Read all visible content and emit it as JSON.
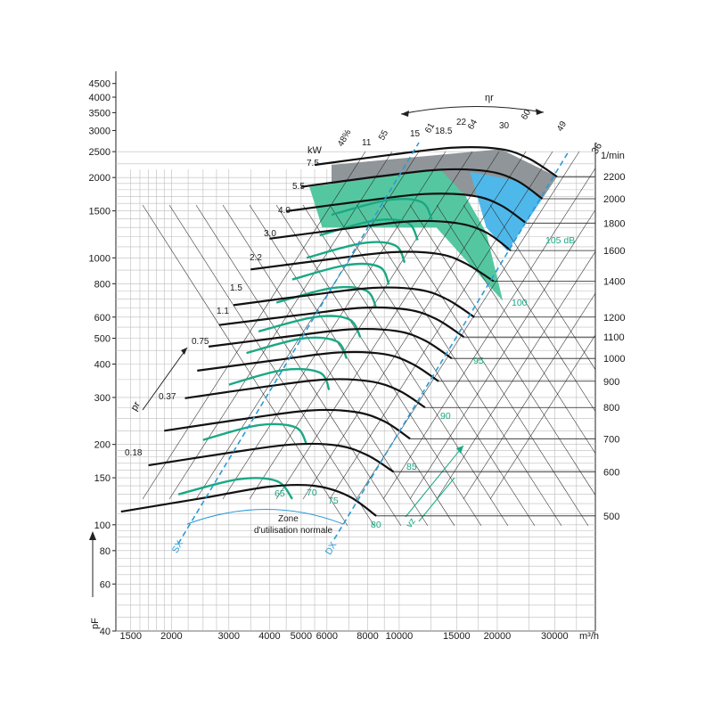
{
  "chart_data": {
    "type": "line",
    "title": "",
    "xlabel": "m³/h",
    "ylabel": "pF",
    "x_scale": "log",
    "y_scale": "log",
    "x_ticks": [
      1500,
      2000,
      3000,
      4000,
      5000,
      6000,
      8000,
      10000,
      15000,
      20000,
      30000
    ],
    "x_unit": "m³/h",
    "y_ticks": [
      40,
      60,
      80,
      100,
      150,
      200,
      300,
      400,
      500,
      600,
      800,
      1000,
      1500,
      2000,
      2500,
      3000,
      3500,
      4000,
      4500
    ],
    "y_axis_symbol": "pF",
    "speed_unit": "1/min",
    "speed_ticks": [
      500,
      600,
      700,
      800,
      900,
      1000,
      1100,
      1200,
      1400,
      1600,
      1800,
      2000,
      2200
    ],
    "power_unit": "kW",
    "power_labels": [
      "0.18",
      "0.37",
      "0.75",
      "1.1",
      "1.5",
      "2.2",
      "3.0",
      "4.0",
      "5.5",
      "7.5",
      "11",
      "15",
      "18.5",
      "22",
      "30"
    ],
    "efficiency_labels": [
      "48%",
      "55",
      "61",
      "64",
      "60",
      "49"
    ],
    "efficiency_symbol": "ηr",
    "pressure_axis_symbol": "pr",
    "sound_labels": [
      "65",
      "70",
      "75",
      "80",
      "85",
      "90",
      "95",
      "100",
      "105 dB"
    ],
    "zone_label_1": "Zone",
    "zone_label_2": "d'utilisation normale",
    "sx_label": "SX",
    "dx_label": "DX",
    "velocity_label": "vz",
    "top_label": "36",
    "speed_curves": [
      {
        "rpm": 500,
        "points": [
          [
            1400,
            112
          ],
          [
            2500,
            126
          ],
          [
            4000,
            139
          ],
          [
            5500,
            140
          ],
          [
            7000,
            128
          ],
          [
            8500,
            108
          ]
        ]
      },
      {
        "rpm": 600,
        "points": [
          [
            1700,
            167
          ],
          [
            3000,
            186
          ],
          [
            4700,
            200
          ],
          [
            6500,
            198
          ],
          [
            8000,
            182
          ],
          [
            9600,
            158
          ]
        ]
      },
      {
        "rpm": 700,
        "points": [
          [
            1900,
            225
          ],
          [
            3400,
            250
          ],
          [
            5300,
            268
          ],
          [
            7300,
            265
          ],
          [
            9000,
            244
          ],
          [
            10800,
            210
          ]
        ]
      },
      {
        "rpm": 800,
        "points": [
          [
            2200,
            298
          ],
          [
            3800,
            328
          ],
          [
            5900,
            350
          ],
          [
            8100,
            345
          ],
          [
            10000,
            318
          ],
          [
            12000,
            275
          ]
        ]
      },
      {
        "rpm": 900,
        "points": [
          [
            2400,
            378
          ],
          [
            4200,
            414
          ],
          [
            6500,
            442
          ],
          [
            9000,
            436
          ],
          [
            11000,
            400
          ],
          [
            13200,
            345
          ]
        ]
      },
      {
        "rpm": 1000,
        "points": [
          [
            2600,
            465
          ],
          [
            4600,
            508
          ],
          [
            7100,
            540
          ],
          [
            9800,
            532
          ],
          [
            12000,
            490
          ],
          [
            14500,
            420
          ]
        ]
      },
      {
        "rpm": 1100,
        "points": [
          [
            2800,
            560
          ],
          [
            5000,
            612
          ],
          [
            7700,
            650
          ],
          [
            10600,
            640
          ],
          [
            13000,
            590
          ],
          [
            15800,
            505
          ]
        ]
      },
      {
        "rpm": 1200,
        "points": [
          [
            3100,
            665
          ],
          [
            5400,
            727
          ],
          [
            8300,
            772
          ],
          [
            11500,
            760
          ],
          [
            14000,
            700
          ],
          [
            17000,
            600
          ]
        ]
      },
      {
        "rpm": 1400,
        "points": [
          [
            3500,
            905
          ],
          [
            6200,
            990
          ],
          [
            9500,
            1050
          ],
          [
            13200,
            1035
          ],
          [
            16000,
            952
          ],
          [
            19500,
            817
          ]
        ]
      },
      {
        "rpm": 1600,
        "points": [
          [
            4000,
            1180
          ],
          [
            7000,
            1290
          ],
          [
            10800,
            1370
          ],
          [
            15000,
            1350
          ],
          [
            18500,
            1245
          ],
          [
            22000,
            1065
          ]
        ]
      },
      {
        "rpm": 1800,
        "points": [
          [
            4500,
            1495
          ],
          [
            7800,
            1635
          ],
          [
            12000,
            1735
          ],
          [
            16800,
            1710
          ],
          [
            20500,
            1575
          ],
          [
            24500,
            1350
          ]
        ]
      },
      {
        "rpm": 2000,
        "points": [
          [
            5000,
            1845
          ],
          [
            8700,
            2020
          ],
          [
            13400,
            2140
          ],
          [
            18700,
            2110
          ],
          [
            23000,
            1945
          ],
          [
            27500,
            1665
          ]
        ]
      },
      {
        "rpm": 2200,
        "points": [
          [
            5500,
            2230
          ],
          [
            9600,
            2440
          ],
          [
            14800,
            2590
          ],
          [
            20500,
            2555
          ],
          [
            25000,
            2355
          ],
          [
            30500,
            2015
          ]
        ]
      }
    ],
    "power_curves": [
      {
        "kw": "0.18",
        "points": [
          [
            2100,
            130
          ],
          [
            3200,
            148
          ],
          [
            4200,
            146
          ],
          [
            4700,
            125
          ]
        ]
      },
      {
        "kw": "0.37",
        "points": [
          [
            2500,
            208
          ],
          [
            3700,
            236
          ],
          [
            4800,
            232
          ],
          [
            5200,
            200
          ]
        ]
      },
      {
        "kw": "0.75",
        "points": [
          [
            3000,
            335
          ],
          [
            4400,
            380
          ],
          [
            5700,
            372
          ],
          [
            6100,
            320
          ]
        ]
      },
      {
        "kw": "1.1",
        "points": [
          [
            3400,
            440
          ],
          [
            5000,
            498
          ],
          [
            6400,
            488
          ],
          [
            6900,
            420
          ]
        ]
      },
      {
        "kw": "1.5",
        "points": [
          [
            3700,
            530
          ],
          [
            5500,
            600
          ],
          [
            7000,
            590
          ],
          [
            7600,
            505
          ]
        ]
      },
      {
        "kw": "2.2",
        "points": [
          [
            4200,
            680
          ],
          [
            6200,
            770
          ],
          [
            7900,
            755
          ],
          [
            8500,
            650
          ]
        ]
      },
      {
        "kw": "3.0",
        "points": [
          [
            4700,
            830
          ],
          [
            6900,
            940
          ],
          [
            8700,
            925
          ],
          [
            9300,
            795
          ]
        ]
      },
      {
        "kw": "4.0",
        "points": [
          [
            5200,
            1000
          ],
          [
            7700,
            1135
          ],
          [
            9700,
            1115
          ],
          [
            10400,
            960
          ]
        ]
      },
      {
        "kw": "5.5",
        "points": [
          [
            5700,
            1215
          ],
          [
            8400,
            1380
          ],
          [
            10600,
            1355
          ],
          [
            11400,
            1165
          ]
        ]
      },
      {
        "kw": "7.5",
        "points": [
          [
            6200,
            1450
          ],
          [
            9200,
            1645
          ],
          [
            11700,
            1620
          ],
          [
            12600,
            1390
          ]
        ]
      }
    ]
  }
}
